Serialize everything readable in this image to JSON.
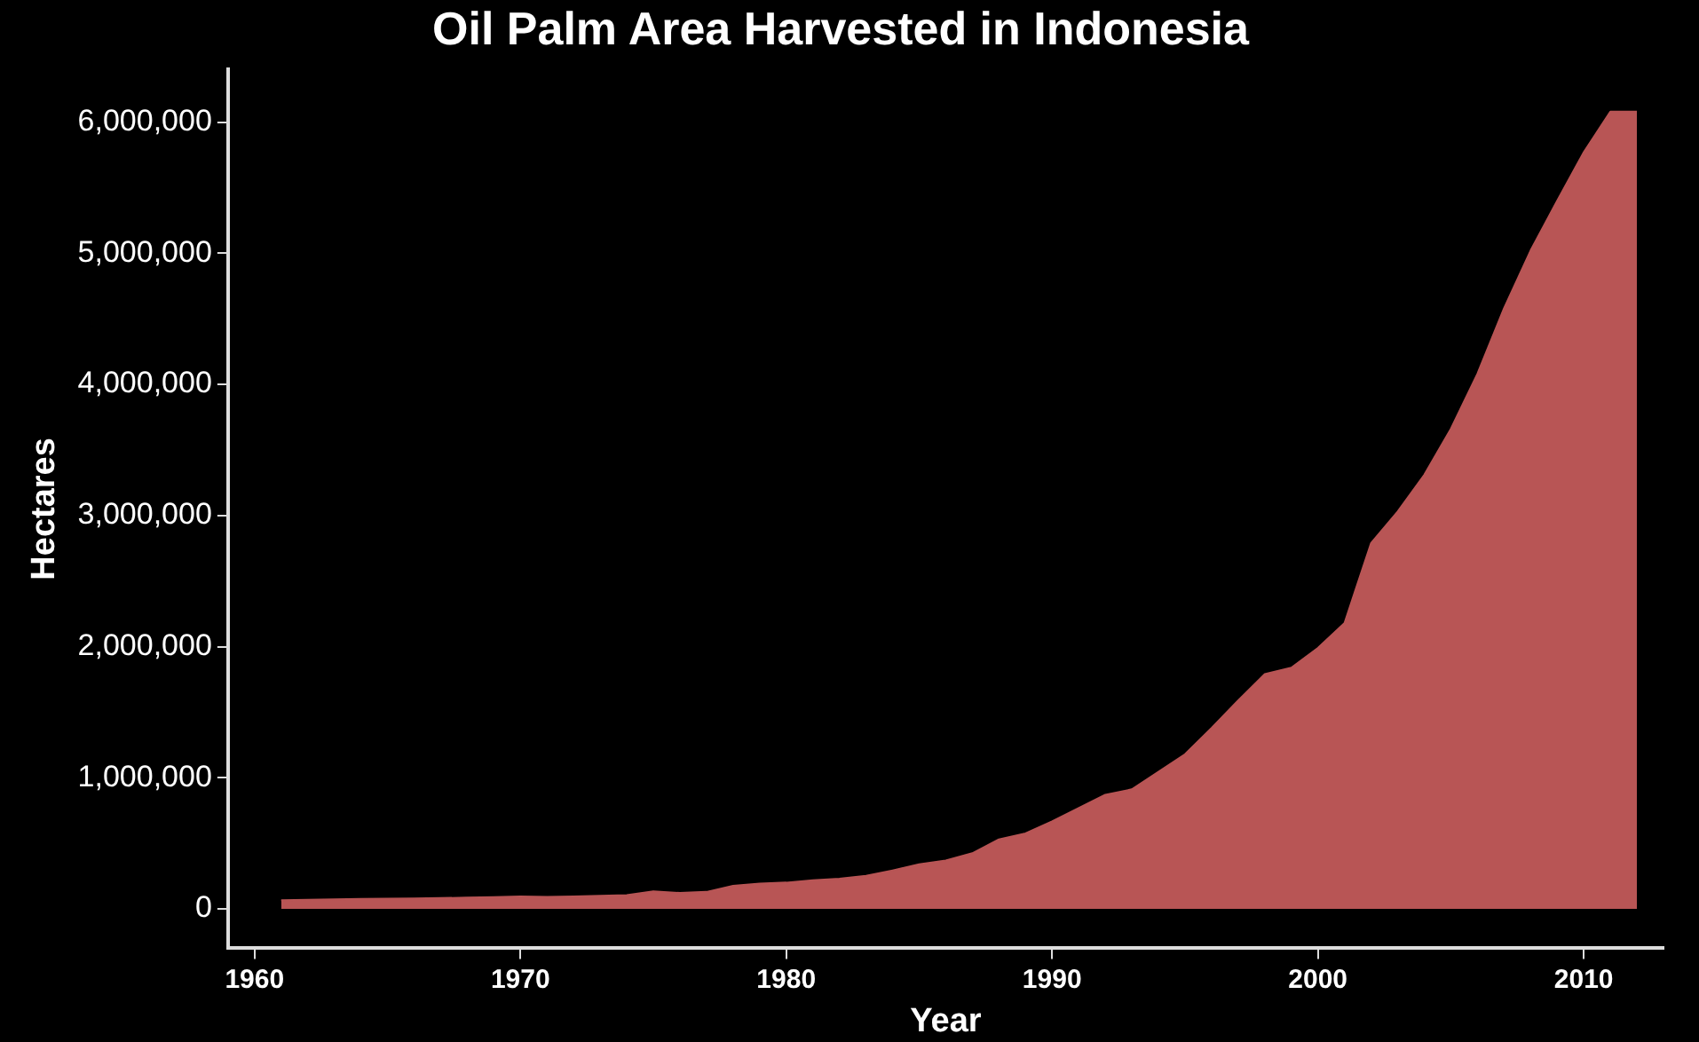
{
  "chart_data": {
    "type": "area",
    "title": "Oil Palm Area Harvested in Indonesia",
    "xlabel": "Year",
    "ylabel": "Hectares",
    "x": [
      1961,
      1962,
      1963,
      1964,
      1965,
      1966,
      1967,
      1968,
      1969,
      1970,
      1971,
      1972,
      1973,
      1974,
      1975,
      1976,
      1977,
      1978,
      1979,
      1980,
      1981,
      1982,
      1983,
      1984,
      1985,
      1986,
      1987,
      1988,
      1989,
      1990,
      1991,
      1992,
      1993,
      1994,
      1995,
      1996,
      1997,
      1998,
      1999,
      2000,
      2001,
      2002,
      2003,
      2004,
      2005,
      2006,
      2007,
      2008,
      2009,
      2010,
      2011,
      2012
    ],
    "series": [
      {
        "color": "#b85555",
        "values": [
          67000,
          70000,
          73000,
          76000,
          78000,
          80000,
          83000,
          86000,
          90000,
          96000,
          92000,
          96000,
          100000,
          105000,
          135000,
          122000,
          130000,
          176000,
          193000,
          201000,
          218000,
          231000,
          252000,
          294000,
          340000,
          370000,
          425000,
          530000,
          576000,
          668000,
          769000,
          870000,
          912000,
          1046000,
          1180000,
          1380000,
          1590000,
          1790000,
          1840000,
          1990000,
          2180000,
          2790000,
          3030000,
          3310000,
          3660000,
          4080000,
          4580000,
          5020000,
          5400000,
          5770000,
          6080000,
          6080000
        ]
      }
    ],
    "xlim": [
      1959,
      2013
    ],
    "xticks": [
      1960,
      1970,
      1980,
      1990,
      2000,
      2010
    ],
    "ylim": [
      -300000,
      6400000
    ],
    "yticks": [
      {
        "value": 0,
        "label": "0"
      },
      {
        "value": 1000000,
        "label": "1,000,000"
      },
      {
        "value": 2000000,
        "label": "2,000,000"
      },
      {
        "value": 3000000,
        "label": "3,000,000"
      },
      {
        "value": 4000000,
        "label": "4,000,000"
      },
      {
        "value": 5000000,
        "label": "5,000,000"
      },
      {
        "value": 6000000,
        "label": "6,000,000"
      }
    ],
    "grid": false,
    "legend": false
  }
}
